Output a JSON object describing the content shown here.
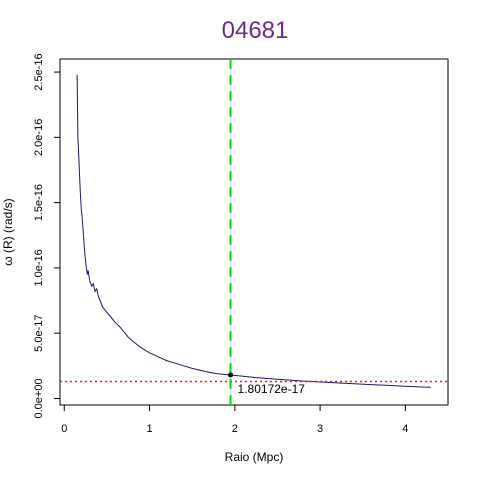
{
  "chart_data": {
    "type": "line",
    "title": "04681",
    "title_color": "#6a2c8e",
    "xlabel": "Raio (Mpc)",
    "ylabel": "ω (R) (rad/s)",
    "xlim": [
      -0.05,
      4.5
    ],
    "ylim": [
      -5e-18,
      2.6e-16
    ],
    "x_ticks": [
      0,
      1,
      2,
      3,
      4
    ],
    "x_tick_labels": [
      "0",
      "1",
      "2",
      "3",
      "4"
    ],
    "y_ticks": [
      0,
      5e-17,
      1e-16,
      1.5e-16,
      2e-16,
      2.5e-16
    ],
    "y_tick_labels": [
      "0.0e+00",
      "5.0e-17",
      "1.0e-16",
      "1.5e-16",
      "2.0e-16",
      "2.5e-16"
    ],
    "grid": false,
    "series": [
      {
        "color": "#191970",
        "x": [
          0.15,
          0.16,
          0.17,
          0.18,
          0.19,
          0.2,
          0.21,
          0.22,
          0.23,
          0.24,
          0.25,
          0.26,
          0.27,
          0.28,
          0.3,
          0.32,
          0.34,
          0.36,
          0.38,
          0.4,
          0.42,
          0.45,
          0.5,
          0.55,
          0.6,
          0.65,
          0.7,
          0.75,
          0.8,
          0.9,
          1.0,
          1.1,
          1.2,
          1.3,
          1.4,
          1.5,
          1.6,
          1.7,
          1.8,
          1.95,
          2.1,
          2.25,
          2.4,
          2.6,
          2.8,
          3.0,
          3.2,
          3.4,
          3.6,
          3.8,
          4.0,
          4.2,
          4.3
        ],
        "y": [
          2.48e-16,
          2e-16,
          1.85e-16,
          1.7e-16,
          1.55e-16,
          1.45e-16,
          1.38e-16,
          1.3e-16,
          1.2e-16,
          1.12e-16,
          1.05e-16,
          1e-16,
          9.5e-17,
          9.8e-17,
          9e-17,
          8.6e-17,
          8.8e-17,
          8.2e-17,
          8.4e-17,
          7.8e-17,
          7.5e-17,
          7e-17,
          6.6e-17,
          6.2e-17,
          5.8e-17,
          5.5e-17,
          5.1e-17,
          4.7e-17,
          4.4e-17,
          3.9e-17,
          3.5e-17,
          3.2e-17,
          2.9e-17,
          2.7e-17,
          2.5e-17,
          2.3e-17,
          2.15e-17,
          2e-17,
          1.9e-17,
          1.8e-17,
          1.7e-17,
          1.6e-17,
          1.52e-17,
          1.42e-17,
          1.34e-17,
          1.26e-17,
          1.19e-17,
          1.12e-17,
          1.06e-17,
          1e-17,
          9.4e-18,
          8.8e-18,
          8.6e-18
        ]
      }
    ],
    "vline": {
      "x": 1.95,
      "color": "#00dd00",
      "style": "dashed"
    },
    "hline": {
      "y": 1.3e-17,
      "color": "#dd2222",
      "style": "dotted"
    },
    "marker": {
      "x": 1.95,
      "y": 1.80172e-17,
      "label": "1.80172e-17",
      "color": "#000000"
    }
  }
}
